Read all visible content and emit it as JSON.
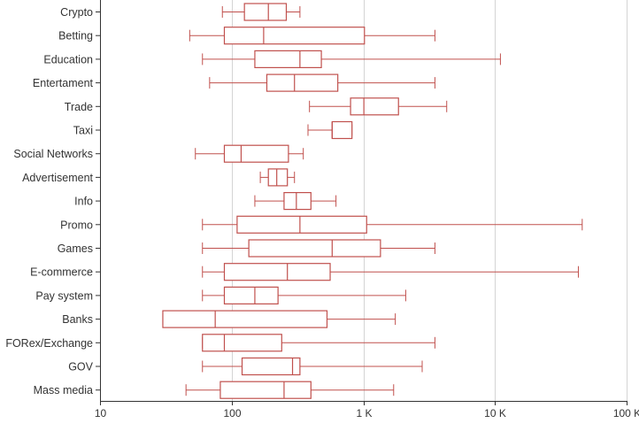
{
  "chart_data": {
    "type": "boxplot",
    "orientation": "horizontal",
    "x_scale": "log",
    "xlim": [
      10,
      100000
    ],
    "x_ticks": [
      {
        "value": 10,
        "label": "10"
      },
      {
        "value": 100,
        "label": "100"
      },
      {
        "value": 1000,
        "label": "1 K"
      },
      {
        "value": 10000,
        "label": "10 K"
      },
      {
        "value": 100000,
        "label": "100 K"
      }
    ],
    "grid": "vertical",
    "box_color": "#c0504d",
    "categories": [
      "Crypto",
      "Betting",
      "Education",
      "Entertament",
      "Trade",
      "Taxi",
      "Social Networks",
      "Advertisement",
      "Info",
      "Promo",
      "Games",
      "E-commerce",
      "Pay system",
      "Banks",
      "FORex/Exchange",
      "GOV",
      "Mass media"
    ],
    "boxes": [
      {
        "category": "Crypto",
        "min": 85,
        "q1": 125,
        "median": 190,
        "q3": 260,
        "max": 330
      },
      {
        "category": "Betting",
        "min": 48,
        "q1": 88,
        "median": 175,
        "q3": 1020,
        "max": 3500
      },
      {
        "category": "Education",
        "min": 60,
        "q1": 150,
        "median": 330,
        "q3": 480,
        "max": 11000
      },
      {
        "category": "Entertament",
        "min": 68,
        "q1": 185,
        "median": 300,
        "q3": 640,
        "max": 3500
      },
      {
        "category": "Trade",
        "min": 390,
        "q1": 800,
        "median": 1010,
        "q3": 1850,
        "max": 4300
      },
      {
        "category": "Taxi",
        "min": 380,
        "q1": 580,
        "median": 580,
        "q3": 820,
        "max": 820
      },
      {
        "category": "Social Networks",
        "min": 53,
        "q1": 88,
        "median": 118,
        "q3": 270,
        "max": 350
      },
      {
        "category": "Advertisement",
        "min": 165,
        "q1": 190,
        "median": 220,
        "q3": 265,
        "max": 300
      },
      {
        "category": "Info",
        "min": 150,
        "q1": 250,
        "median": 310,
        "q3": 400,
        "max": 620
      },
      {
        "category": "Promo",
        "min": 60,
        "q1": 110,
        "median": 330,
        "q3": 1060,
        "max": 46000
      },
      {
        "category": "Games",
        "min": 60,
        "q1": 135,
        "median": 580,
        "q3": 1350,
        "max": 3500
      },
      {
        "category": "E-commerce",
        "min": 60,
        "q1": 88,
        "median": 265,
        "q3": 560,
        "max": 43000
      },
      {
        "category": "Pay system",
        "min": 60,
        "q1": 88,
        "median": 150,
        "q3": 225,
        "max": 2100
      },
      {
        "category": "Banks",
        "min": 30,
        "q1": 30,
        "median": 75,
        "q3": 530,
        "max": 1750
      },
      {
        "category": "FORex/Exchange",
        "min": 60,
        "q1": 60,
        "median": 88,
        "q3": 240,
        "max": 3500
      },
      {
        "category": "GOV",
        "min": 60,
        "q1": 120,
        "median": 290,
        "q3": 330,
        "max": 2800
      },
      {
        "category": "Mass media",
        "min": 45,
        "q1": 82,
        "median": 250,
        "q3": 400,
        "max": 1700
      }
    ]
  }
}
